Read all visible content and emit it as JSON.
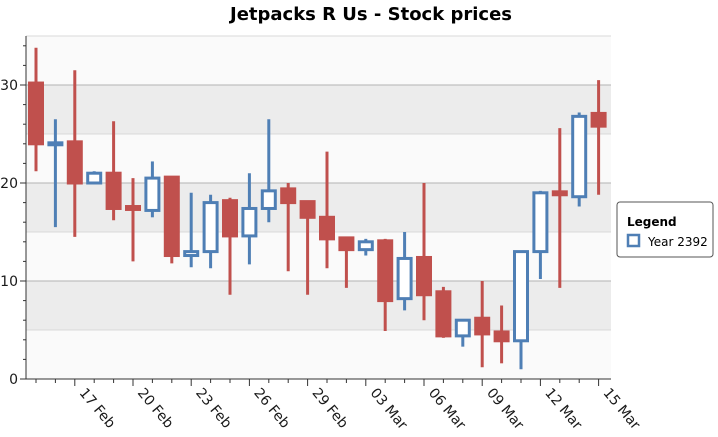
{
  "chart_data": {
    "type": "candlestick",
    "title": "Jetpacks R Us - Stock prices",
    "xlabel": "",
    "ylabel": "",
    "ylim": [
      0,
      35
    ],
    "yticks": [
      0,
      10,
      20,
      30
    ],
    "grid": true,
    "legend": {
      "title": "Legend",
      "position": "right",
      "entries": [
        "Year 2392"
      ]
    },
    "xtick_labels": [
      "17 Feb",
      "20 Feb",
      "23 Feb",
      "26 Feb",
      "29 Feb",
      "03 Mar",
      "06 Mar",
      "09 Mar",
      "12 Mar",
      "15 Mar"
    ],
    "colors": {
      "up": "#4f7fb5",
      "down": "#c0504d"
    },
    "series": [
      {
        "name": "Year 2392",
        "points": [
          {
            "day": 14,
            "open": 30.2,
            "high": 33.8,
            "low": 21.2,
            "close": 24.0
          },
          {
            "day": 15,
            "open": 23.9,
            "high": 26.5,
            "low": 15.5,
            "close": 24.1
          },
          {
            "day": 16,
            "open": 24.2,
            "high": 31.5,
            "low": 14.5,
            "close": 20.0
          },
          {
            "day": 17,
            "open": 20.0,
            "high": 21.2,
            "low": 20.0,
            "close": 21.0
          },
          {
            "day": 18,
            "open": 21.0,
            "high": 26.3,
            "low": 16.2,
            "close": 17.4
          },
          {
            "day": 19,
            "open": 17.6,
            "high": 20.5,
            "low": 12.0,
            "close": 17.3
          },
          {
            "day": 20,
            "open": 17.2,
            "high": 22.2,
            "low": 16.5,
            "close": 20.5
          },
          {
            "day": 21,
            "open": 20.6,
            "high": 20.6,
            "low": 11.8,
            "close": 12.6
          },
          {
            "day": 22,
            "open": 12.6,
            "high": 19.0,
            "low": 11.4,
            "close": 13.0
          },
          {
            "day": 23,
            "open": 13.0,
            "high": 18.8,
            "low": 11.3,
            "close": 18.0
          },
          {
            "day": 24,
            "open": 18.2,
            "high": 18.5,
            "low": 8.6,
            "close": 14.6
          },
          {
            "day": 25,
            "open": 14.6,
            "high": 21.0,
            "low": 11.7,
            "close": 17.4
          },
          {
            "day": 26,
            "open": 17.4,
            "high": 26.5,
            "low": 16.0,
            "close": 19.2
          },
          {
            "day": 27,
            "open": 19.4,
            "high": 20.0,
            "low": 11.0,
            "close": 18.0
          },
          {
            "day": 28,
            "open": 18.1,
            "high": 18.1,
            "low": 8.6,
            "close": 16.5
          },
          {
            "day": 29,
            "open": 16.5,
            "high": 23.2,
            "low": 11.3,
            "close": 14.3
          },
          {
            "day": 30,
            "open": 14.4,
            "high": 14.4,
            "low": 9.3,
            "close": 13.2
          },
          {
            "day": 31,
            "open": 13.2,
            "high": 14.3,
            "low": 12.6,
            "close": 14.0
          },
          {
            "day": 32,
            "open": 14.1,
            "high": 14.3,
            "low": 4.9,
            "close": 8.0
          },
          {
            "day": 33,
            "open": 8.2,
            "high": 15.0,
            "low": 7.0,
            "close": 12.3
          },
          {
            "day": 34,
            "open": 12.4,
            "high": 20.0,
            "low": 6.0,
            "close": 8.6
          },
          {
            "day": 35,
            "open": 8.9,
            "high": 9.4,
            "low": 4.2,
            "close": 4.4
          },
          {
            "day": 36,
            "open": 4.4,
            "high": 6.0,
            "low": 3.3,
            "close": 6.0
          },
          {
            "day": 37,
            "open": 6.2,
            "high": 10.0,
            "low": 1.2,
            "close": 4.6
          },
          {
            "day": 38,
            "open": 4.8,
            "high": 7.5,
            "low": 1.6,
            "close": 3.9
          },
          {
            "day": 39,
            "open": 3.9,
            "high": 13.0,
            "low": 1.0,
            "close": 13.0
          },
          {
            "day": 40,
            "open": 13.0,
            "high": 19.2,
            "low": 10.2,
            "close": 19.0
          },
          {
            "day": 41,
            "open": 19.1,
            "high": 25.6,
            "low": 9.3,
            "close": 18.8
          },
          {
            "day": 42,
            "open": 18.6,
            "high": 27.2,
            "low": 17.6,
            "close": 26.8
          },
          {
            "day": 43,
            "open": 27.1,
            "high": 30.5,
            "low": 18.8,
            "close": 25.8
          }
        ]
      }
    ]
  }
}
